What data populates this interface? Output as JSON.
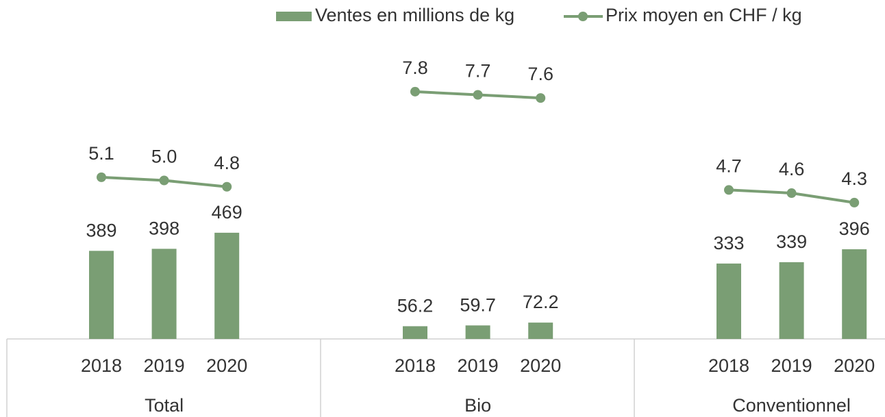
{
  "chart_data": {
    "type": "bar_line",
    "categories": [
      "2018",
      "2019",
      "2020",
      "2018",
      "2019",
      "2020",
      "2018",
      "2019",
      "2020"
    ],
    "category_groups": [
      "Total",
      "Bio",
      "Conventionnel"
    ],
    "series": [
      {
        "name": "Ventes en millions de kg",
        "type": "bar",
        "color": "#7a9e74",
        "values": [
          389,
          398,
          469,
          56.2,
          59.7,
          72.2,
          333,
          339,
          396
        ]
      },
      {
        "name": "Prix moyen en CHF / kg",
        "type": "line",
        "axis": "y2",
        "color": "#7a9e74",
        "values": [
          5.1,
          5.0,
          4.8,
          7.8,
          7.7,
          7.6,
          4.7,
          4.6,
          4.3
        ],
        "value_labels": [
          "5.1",
          "5.0",
          "4.8",
          "7.8",
          "7.7",
          "7.6",
          "4.7",
          "4.6",
          "4.3"
        ]
      }
    ],
    "ylim": [
      0,
      1400
    ],
    "y2lim": [
      0,
      10
    ],
    "legend": "top"
  }
}
